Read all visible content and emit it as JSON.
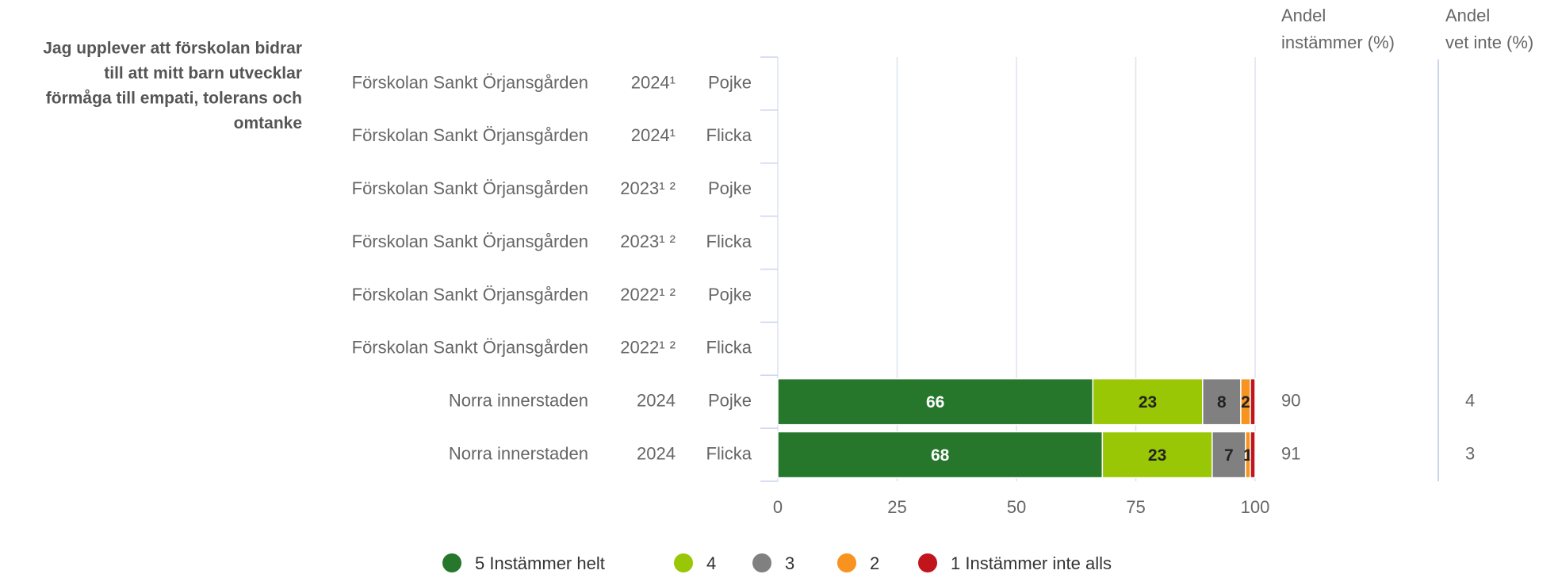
{
  "chart_data": {
    "type": "bar",
    "orientation": "horizontal",
    "stacked": true,
    "question": [
      "Jag upplever att förskolan bidrar",
      "till att mitt barn utvecklar",
      "förmåga till empati, tolerans och",
      "omtanke"
    ],
    "categories": [
      [
        "Förskolan Sankt Örjansgården",
        "2024¹",
        "Pojke"
      ],
      [
        "Förskolan Sankt Örjansgården",
        "2024¹",
        "Flicka"
      ],
      [
        "Förskolan Sankt Örjansgården",
        "2023¹ ²",
        "Pojke"
      ],
      [
        "Förskolan Sankt Örjansgården",
        "2023¹ ²",
        "Flicka"
      ],
      [
        "Förskolan Sankt Örjansgården",
        "2022¹ ²",
        "Pojke"
      ],
      [
        "Förskolan Sankt Örjansgården",
        "2022¹ ²",
        "Flicka"
      ],
      [
        "Norra innerstaden",
        "2024",
        "Pojke"
      ],
      [
        "Norra innerstaden",
        "2024",
        "Flicka"
      ]
    ],
    "series": [
      {
        "name": "5 Instämmer helt",
        "color": "#26762c",
        "label_color": "#ffffff",
        "show_labels": true,
        "values": [
          null,
          null,
          null,
          null,
          null,
          null,
          66,
          68
        ]
      },
      {
        "name": "4",
        "color": "#99c705",
        "label_color": "#222222",
        "show_labels": true,
        "values": [
          null,
          null,
          null,
          null,
          null,
          null,
          23,
          23
        ]
      },
      {
        "name": "3",
        "color": "#808080",
        "label_color": "#222222",
        "show_labels": true,
        "values": [
          null,
          null,
          null,
          null,
          null,
          null,
          8,
          7
        ]
      },
      {
        "name": "2",
        "color": "#f7931e",
        "label_color": "#222222",
        "show_labels": true,
        "values": [
          null,
          null,
          null,
          null,
          null,
          null,
          2,
          1
        ]
      },
      {
        "name": "1 Instämmer inte alls",
        "color": "#c1141b",
        "label_color": "#222222",
        "show_labels": false,
        "values": [
          null,
          null,
          null,
          null,
          null,
          null,
          1,
          1
        ]
      }
    ],
    "columns": [
      {
        "title": [
          "Andel",
          "instämmer (%)"
        ],
        "values": [
          null,
          null,
          null,
          null,
          null,
          null,
          90,
          91
        ]
      },
      {
        "title": [
          "Andel",
          "vet inte (%)"
        ],
        "values": [
          null,
          null,
          null,
          null,
          null,
          null,
          4,
          3
        ]
      }
    ],
    "xlim": [
      0,
      100
    ],
    "xticks": [
      0,
      25,
      50,
      75,
      100
    ],
    "grid": true
  }
}
